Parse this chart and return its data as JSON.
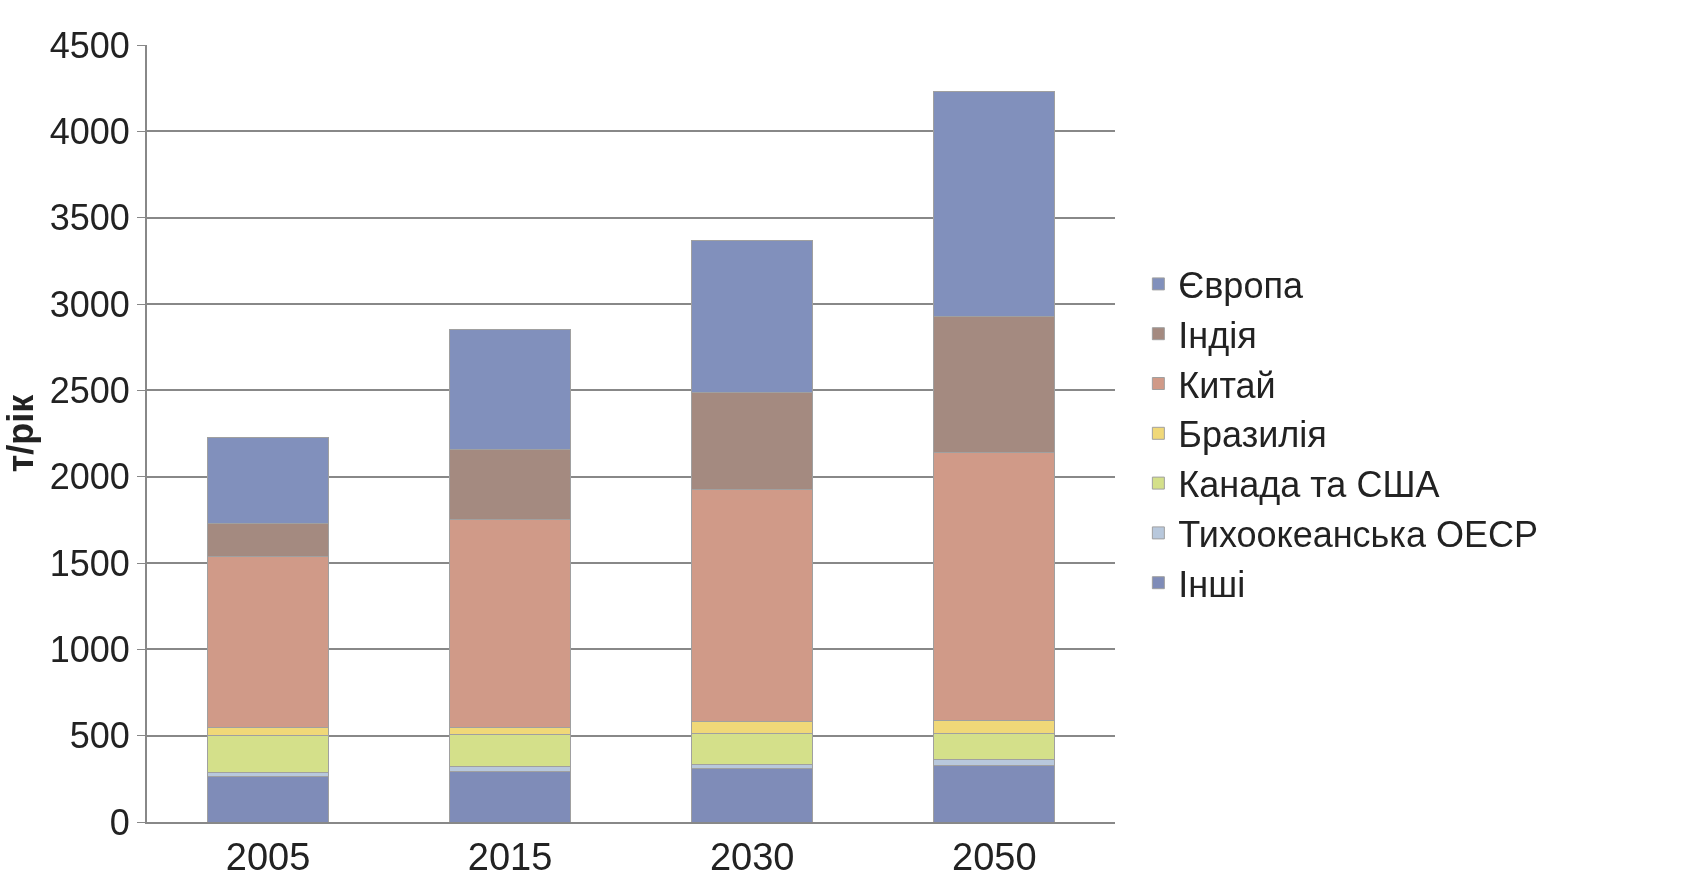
{
  "chart_data": {
    "type": "bar",
    "stacked": true,
    "ylabel": "т/рік",
    "categories": [
      "2005",
      "2015",
      "2030",
      "2050"
    ],
    "series": [
      {
        "name": "Інші",
        "color": "#7f8cb8",
        "values": [
          265,
          295,
          310,
          330
        ]
      },
      {
        "name": "Тихоокеанська ОЕСР",
        "color": "#b8c8dc",
        "values": [
          20,
          25,
          25,
          30
        ]
      },
      {
        "name": "Канада та США",
        "color": "#d4e08a",
        "values": [
          215,
          185,
          175,
          155
        ]
      },
      {
        "name": "Бразилія",
        "color": "#f0d878",
        "values": [
          50,
          45,
          70,
          70
        ]
      },
      {
        "name": "Китай",
        "color": "#d09a88",
        "values": [
          990,
          1200,
          1345,
          1555
        ]
      },
      {
        "name": "Індія",
        "color": "#a48a80",
        "values": [
          190,
          405,
          560,
          790
        ]
      },
      {
        "name": "Європа",
        "color": "#8190bc",
        "values": [
          495,
          695,
          880,
          1300
        ]
      }
    ],
    "ylim": [
      0,
      4500
    ],
    "yticks": [
      0,
      500,
      1000,
      1500,
      2000,
      2500,
      3000,
      3500,
      4000,
      4500
    ],
    "grid": "y",
    "legend": "right"
  }
}
